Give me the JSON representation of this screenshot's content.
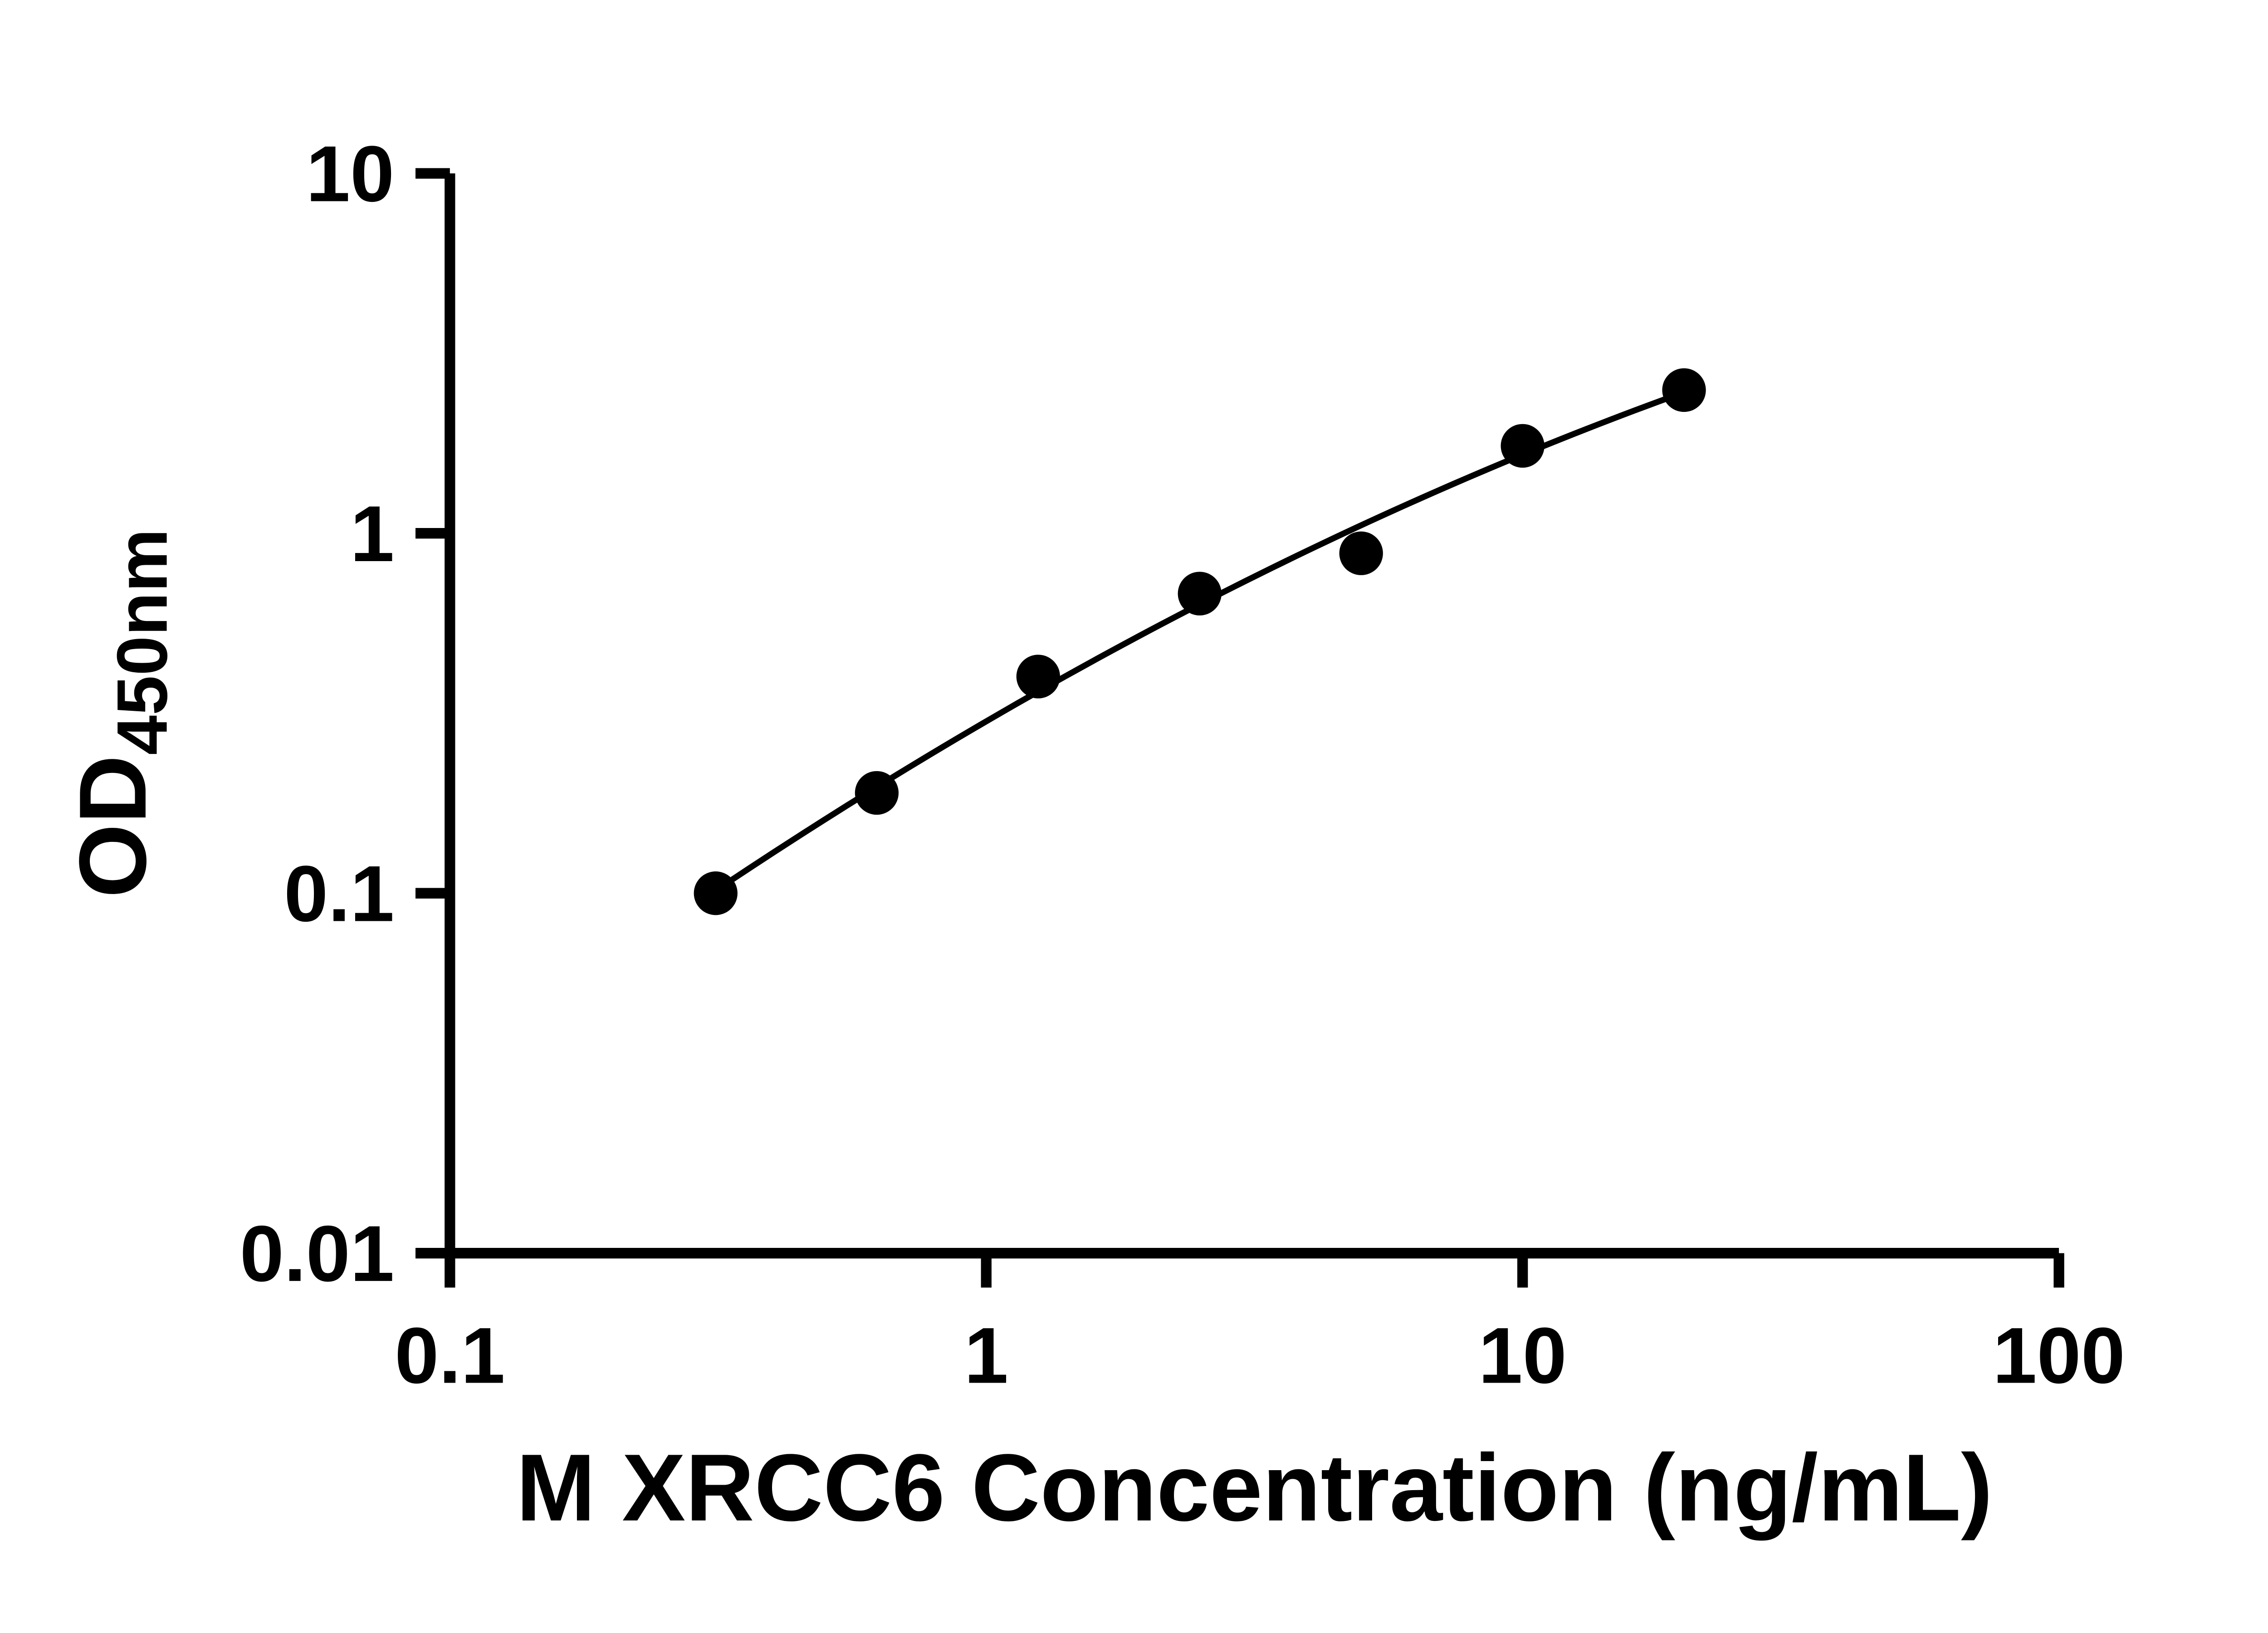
{
  "page": {
    "background": "#ffffff"
  },
  "chart_data": {
    "type": "scatter",
    "title": "",
    "xlabel": "M XRCC6 Concentration (ng/mL)",
    "ylabel_main": "OD",
    "ylabel_sub": "450nm",
    "x_scale": "log",
    "y_scale": "log",
    "xlim": [
      0.1,
      100
    ],
    "ylim": [
      0.01,
      10
    ],
    "x_ticks": [
      0.1,
      1,
      10,
      100
    ],
    "x_tick_labels": [
      "0.1",
      "1",
      "10",
      "100"
    ],
    "y_ticks": [
      0.01,
      0.1,
      1,
      10
    ],
    "y_tick_labels": [
      "0.01",
      "0.1",
      "1",
      "10"
    ],
    "grid": false,
    "legend": false,
    "axis_color": "#000000",
    "series": [
      {
        "name": "standard-curve-points",
        "marker": "circle",
        "color": "#000000",
        "points": [
          {
            "x": 0.313,
            "y": 0.1
          },
          {
            "x": 0.625,
            "y": 0.19
          },
          {
            "x": 1.25,
            "y": 0.4
          },
          {
            "x": 2.5,
            "y": 0.68
          },
          {
            "x": 5.0,
            "y": 0.88
          },
          {
            "x": 10.0,
            "y": 1.75
          },
          {
            "x": 20.0,
            "y": 2.5
          }
        ]
      }
    ],
    "fit_line": {
      "type": "quadratic-in-log10",
      "coefficients": {
        "a": -0.5224,
        "b": 0.868,
        "c": -0.127
      },
      "x_range": [
        0.31,
        20
      ],
      "color": "#000000"
    }
  }
}
